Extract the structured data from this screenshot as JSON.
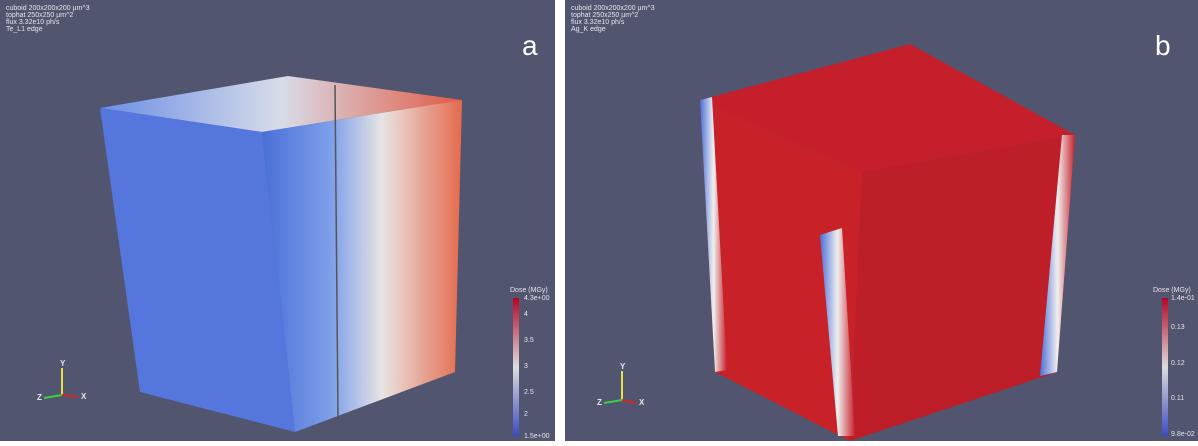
{
  "panels": [
    {
      "info": [
        "cuboid 200x200x200 µm^3",
        "tophat 250x250 µm^2",
        "flux 3.32e10 ph/s",
        "Te_L1 edge"
      ],
      "label": "a",
      "colorbar": {
        "title": "Dose (MGy)",
        "ticks": [
          "4.3e+00",
          "4",
          "3.5",
          "3",
          "2.5",
          "2",
          "1.5e+00"
        ]
      },
      "axes": {
        "x": "X",
        "y": "Y",
        "z": "Z"
      }
    },
    {
      "info": [
        "cuboid 200x200x200 µm^3",
        "tophat 250x250 µm^2",
        "flux 3.32e10 ph/s",
        "Ag_K edge"
      ],
      "label": "b",
      "colorbar": {
        "title": "Dose (MGy)",
        "ticks": [
          "1.4e-01",
          "0.13",
          "0.12",
          "0.11",
          "9.8e-02"
        ]
      },
      "axes": {
        "x": "X",
        "y": "Y",
        "z": "Z"
      }
    }
  ]
}
